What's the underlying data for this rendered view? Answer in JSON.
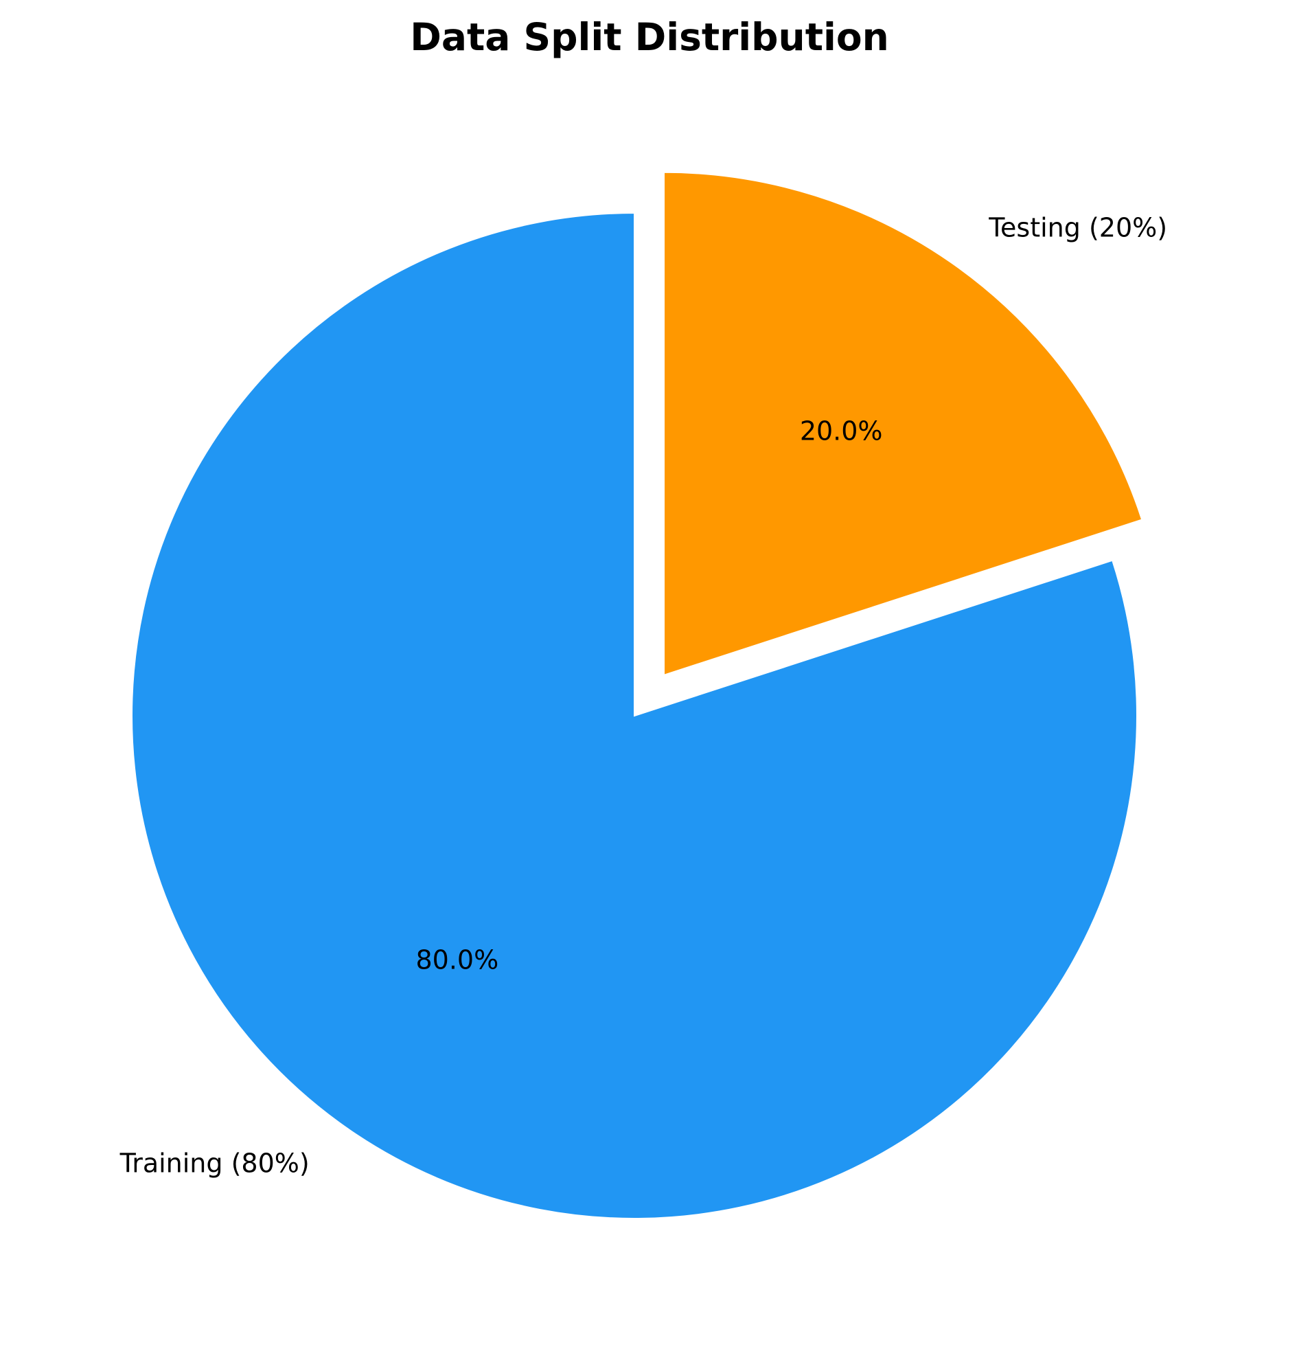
{
  "chart_data": {
    "type": "pie",
    "title": "Data Split Distribution",
    "start_angle_deg": 90,
    "direction": "clockwise",
    "slices": [
      {
        "label": "Testing (20%)",
        "value": 20,
        "pct_label": "20.0%",
        "color": "#ff9800",
        "exploded": true
      },
      {
        "label": "Training (80%)",
        "value": 80,
        "pct_label": "80.0%",
        "color": "#2196f3",
        "exploded": false
      }
    ],
    "legend": "none"
  }
}
